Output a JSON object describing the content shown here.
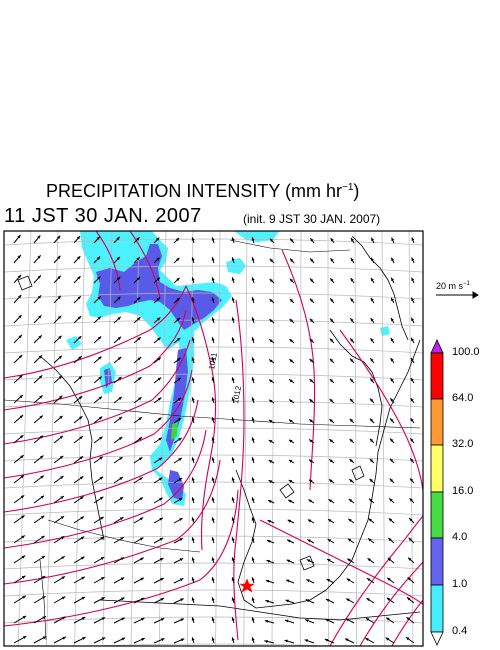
{
  "title": {
    "main": "PRECIPITATION INTENSITY (mm hr",
    "unit_exp": "−1",
    "close": ")"
  },
  "valid_time": "11 JST 30 JAN. 2007",
  "init_time": "(init. 9 JST 30 JAN. 2007)",
  "wind_reference": {
    "label": "20 m s",
    "unit_exp": "−1"
  },
  "isobar_labels": [
    "1011",
    "1012"
  ],
  "colorbar": {
    "levels": [
      "100.0",
      "64.0",
      "32.0",
      "16.0",
      "4.0",
      "1.0",
      "0.4"
    ],
    "colors": [
      "#ff0000",
      "#ff9a33",
      "#ffff66",
      "#44dd44",
      "#6464f0",
      "#44eeff"
    ],
    "over_color": "#bb22ee",
    "under_color": "#ffffff"
  },
  "colors": {
    "precip_light": "#4cf2ff",
    "precip_moderate": "#5a5ae8",
    "precip_heavy": "#3ad83a",
    "isobar": "#d40058",
    "marker": "#ff0000"
  },
  "marker": {
    "symbol": "star",
    "color": "#ff0000"
  }
}
